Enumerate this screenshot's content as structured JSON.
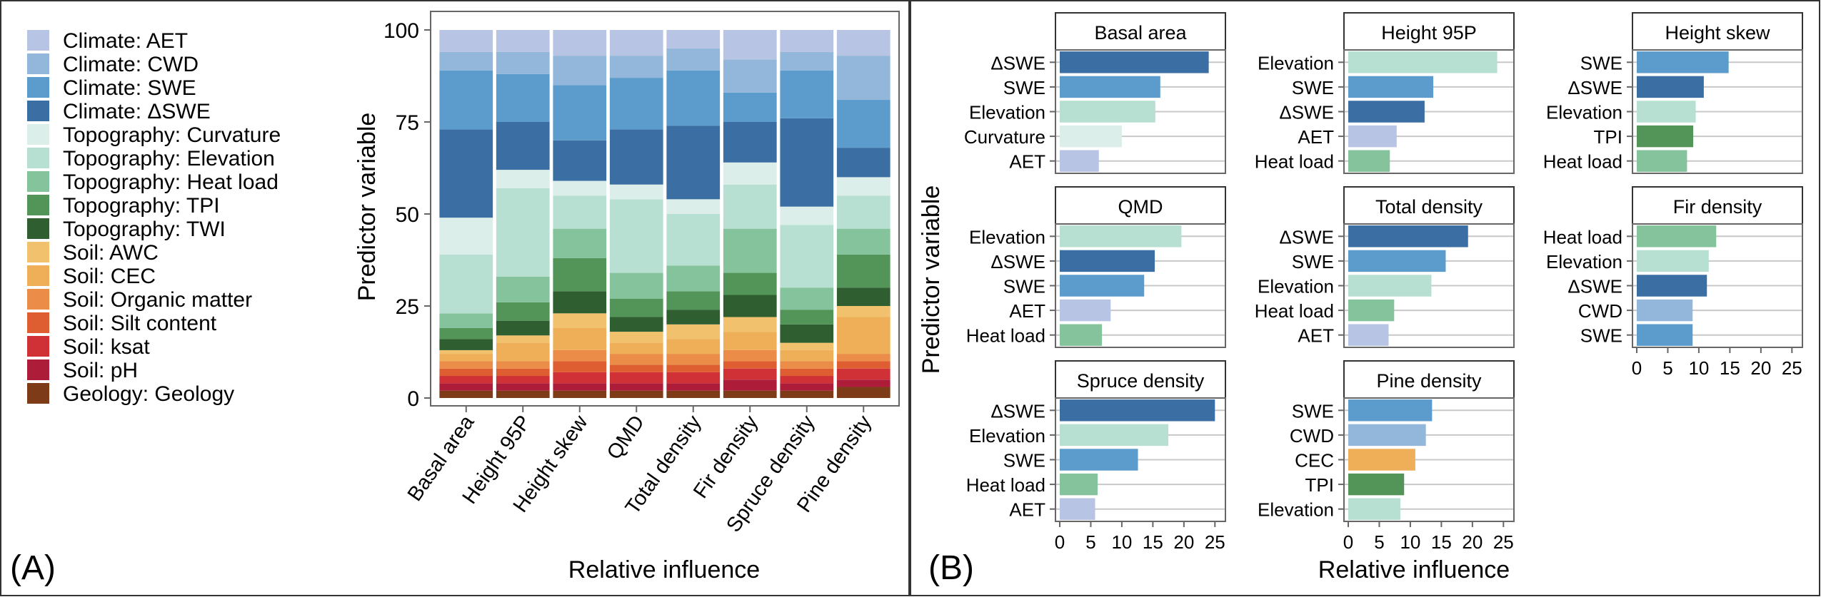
{
  "panels": {
    "a_label": "(A)",
    "b_label": "(B)"
  },
  "categories_colors": [
    {
      "label": "Climate: AET",
      "color": "#b7c4e3"
    },
    {
      "label": "Climate: CWD",
      "color": "#92b7da"
    },
    {
      "label": "Climate: SWE",
      "color": "#5c9ccc"
    },
    {
      "label": "Climate: ΔSWE",
      "color": "#3b6ea2"
    },
    {
      "label": "Topography: Curvature",
      "color": "#dbeee9"
    },
    {
      "label": "Topography: Elevation",
      "color": "#b8e0d2"
    },
    {
      "label": "Topography: Heat load",
      "color": "#85c39c"
    },
    {
      "label": "Topography: TPI",
      "color": "#539558"
    },
    {
      "label": "Topography: TWI",
      "color": "#2f5e31"
    },
    {
      "label": "Soil: AWC",
      "color": "#f2c16e"
    },
    {
      "label": "Soil: CEC",
      "color": "#efaf58"
    },
    {
      "label": "Soil: Organic matter",
      "color": "#eb8c48"
    },
    {
      "label": "Soil: Silt content",
      "color": "#de5e32"
    },
    {
      "label": "Soil: ksat",
      "color": "#cf3136"
    },
    {
      "label": "Soil: pH",
      "color": "#ad1d3a"
    },
    {
      "label": "Geology: Geology",
      "color": "#7e3b18"
    }
  ],
  "chart_data": [
    {
      "type": "bar",
      "stacked": true,
      "title": "",
      "xlabel": "Relative influence",
      "ylabel": "Predictor variable",
      "ylim": [
        0,
        100
      ],
      "yticks": [
        0,
        25,
        50,
        75,
        100
      ],
      "categories": [
        "Basal area",
        "Height 95P",
        "Height skew",
        "QMD",
        "Total density",
        "Fir density",
        "Spruce density",
        "Pine density"
      ],
      "series": [
        {
          "name": "Geology: Geology",
          "values": [
            2,
            2,
            2,
            2,
            2,
            2,
            2,
            3
          ]
        },
        {
          "name": "Soil: pH",
          "values": [
            2,
            2,
            2,
            2,
            2,
            3,
            2,
            2
          ]
        },
        {
          "name": "Soil: ksat",
          "values": [
            2,
            2,
            3,
            3,
            3,
            3,
            2,
            3
          ]
        },
        {
          "name": "Soil: Silt content",
          "values": [
            2,
            2,
            3,
            2,
            2,
            2,
            2,
            2
          ]
        },
        {
          "name": "Soil: Organic matter",
          "values": [
            2,
            2,
            3,
            3,
            3,
            3,
            2,
            2
          ]
        },
        {
          "name": "Soil: CEC",
          "values": [
            2,
            5,
            6,
            3,
            4,
            5,
            3,
            10
          ]
        },
        {
          "name": "Soil: AWC",
          "values": [
            1,
            2,
            4,
            3,
            4,
            4,
            2,
            3
          ]
        },
        {
          "name": "Topography: TWI",
          "values": [
            3,
            4,
            6,
            4,
            4,
            6,
            5,
            5
          ]
        },
        {
          "name": "Topography: TPI",
          "values": [
            3,
            5,
            9,
            5,
            5,
            6,
            4,
            9
          ]
        },
        {
          "name": "Topography: Heat load",
          "values": [
            4,
            7,
            8,
            7,
            7,
            12,
            6,
            7
          ]
        },
        {
          "name": "Topography: Elevation",
          "values": [
            16,
            24,
            9,
            20,
            14,
            12,
            17,
            9
          ]
        },
        {
          "name": "Topography: Curvature",
          "values": [
            10,
            5,
            4,
            4,
            4,
            6,
            5,
            5
          ]
        },
        {
          "name": "Climate: ΔSWE",
          "values": [
            24,
            13,
            11,
            15,
            20,
            11,
            24,
            8
          ]
        },
        {
          "name": "Climate: SWE",
          "values": [
            16,
            13,
            15,
            14,
            15,
            8,
            13,
            13
          ]
        },
        {
          "name": "Climate: CWD",
          "values": [
            5,
            6,
            8,
            6,
            6,
            9,
            5,
            12
          ]
        },
        {
          "name": "Climate: AET",
          "values": [
            6,
            6,
            7,
            7,
            5,
            8,
            6,
            7
          ]
        }
      ]
    },
    {
      "type": "bar",
      "orientation": "horizontal",
      "faceted": true,
      "xlabel": "Relative influence",
      "ylabel": "Predictor variable",
      "xlim": [
        0,
        26
      ],
      "xticks": [
        0,
        5,
        10,
        15,
        20,
        25
      ],
      "facets": [
        {
          "title": "Basal area",
          "bars": [
            {
              "label": "ΔSWE",
              "value": 24,
              "color": "#3b6ea2"
            },
            {
              "label": "SWE",
              "value": 16.2,
              "color": "#5c9ccc"
            },
            {
              "label": "Elevation",
              "value": 15.4,
              "color": "#b8e0d2"
            },
            {
              "label": "Curvature",
              "value": 10,
              "color": "#dbeee9"
            },
            {
              "label": "AET",
              "value": 6.3,
              "color": "#b7c4e3"
            }
          ]
        },
        {
          "title": "Height 95P",
          "bars": [
            {
              "label": "Elevation",
              "value": 24,
              "color": "#b8e0d2"
            },
            {
              "label": "SWE",
              "value": 13.7,
              "color": "#5c9ccc"
            },
            {
              "label": "ΔSWE",
              "value": 12.3,
              "color": "#3b6ea2"
            },
            {
              "label": "AET",
              "value": 7.8,
              "color": "#b7c4e3"
            },
            {
              "label": "Heat load",
              "value": 6.7,
              "color": "#85c39c"
            }
          ]
        },
        {
          "title": "Height skew",
          "bars": [
            {
              "label": "SWE",
              "value": 14.8,
              "color": "#5c9ccc"
            },
            {
              "label": "ΔSWE",
              "value": 10.8,
              "color": "#3b6ea2"
            },
            {
              "label": "Elevation",
              "value": 9.5,
              "color": "#b8e0d2"
            },
            {
              "label": "TPI",
              "value": 9.1,
              "color": "#539558"
            },
            {
              "label": "Heat load",
              "value": 8.1,
              "color": "#85c39c"
            }
          ]
        },
        {
          "title": "QMD",
          "bars": [
            {
              "label": "Elevation",
              "value": 19.6,
              "color": "#b8e0d2"
            },
            {
              "label": "ΔSWE",
              "value": 15.3,
              "color": "#3b6ea2"
            },
            {
              "label": "SWE",
              "value": 13.6,
              "color": "#5c9ccc"
            },
            {
              "label": "AET",
              "value": 8.2,
              "color": "#b7c4e3"
            },
            {
              "label": "Heat load",
              "value": 6.8,
              "color": "#85c39c"
            }
          ]
        },
        {
          "title": "Total density",
          "bars": [
            {
              "label": "ΔSWE",
              "value": 19.3,
              "color": "#3b6ea2"
            },
            {
              "label": "SWE",
              "value": 15.7,
              "color": "#5c9ccc"
            },
            {
              "label": "Elevation",
              "value": 13.4,
              "color": "#b8e0d2"
            },
            {
              "label": "Heat load",
              "value": 7.4,
              "color": "#85c39c"
            },
            {
              "label": "AET",
              "value": 6.5,
              "color": "#b7c4e3"
            }
          ]
        },
        {
          "title": "Fir density",
          "bars": [
            {
              "label": "Heat load",
              "value": 12.8,
              "color": "#85c39c"
            },
            {
              "label": "Elevation",
              "value": 11.6,
              "color": "#b8e0d2"
            },
            {
              "label": "ΔSWE",
              "value": 11.3,
              "color": "#3b6ea2"
            },
            {
              "label": "CWD",
              "value": 9,
              "color": "#92b7da"
            },
            {
              "label": "SWE",
              "value": 9,
              "color": "#5c9ccc"
            }
          ]
        },
        {
          "title": "Spruce density",
          "bars": [
            {
              "label": "ΔSWE",
              "value": 25,
              "color": "#3b6ea2"
            },
            {
              "label": "Elevation",
              "value": 17.5,
              "color": "#b8e0d2"
            },
            {
              "label": "SWE",
              "value": 12.6,
              "color": "#5c9ccc"
            },
            {
              "label": "Heat load",
              "value": 6.1,
              "color": "#85c39c"
            },
            {
              "label": "AET",
              "value": 5.7,
              "color": "#b7c4e3"
            }
          ]
        },
        {
          "title": "Pine density",
          "bars": [
            {
              "label": "SWE",
              "value": 13.5,
              "color": "#5c9ccc"
            },
            {
              "label": "CWD",
              "value": 12.5,
              "color": "#92b7da"
            },
            {
              "label": "CEC",
              "value": 10.8,
              "color": "#efaf58"
            },
            {
              "label": "TPI",
              "value": 9,
              "color": "#539558"
            },
            {
              "label": "Elevation",
              "value": 8.4,
              "color": "#b8e0d2"
            }
          ]
        }
      ]
    }
  ]
}
